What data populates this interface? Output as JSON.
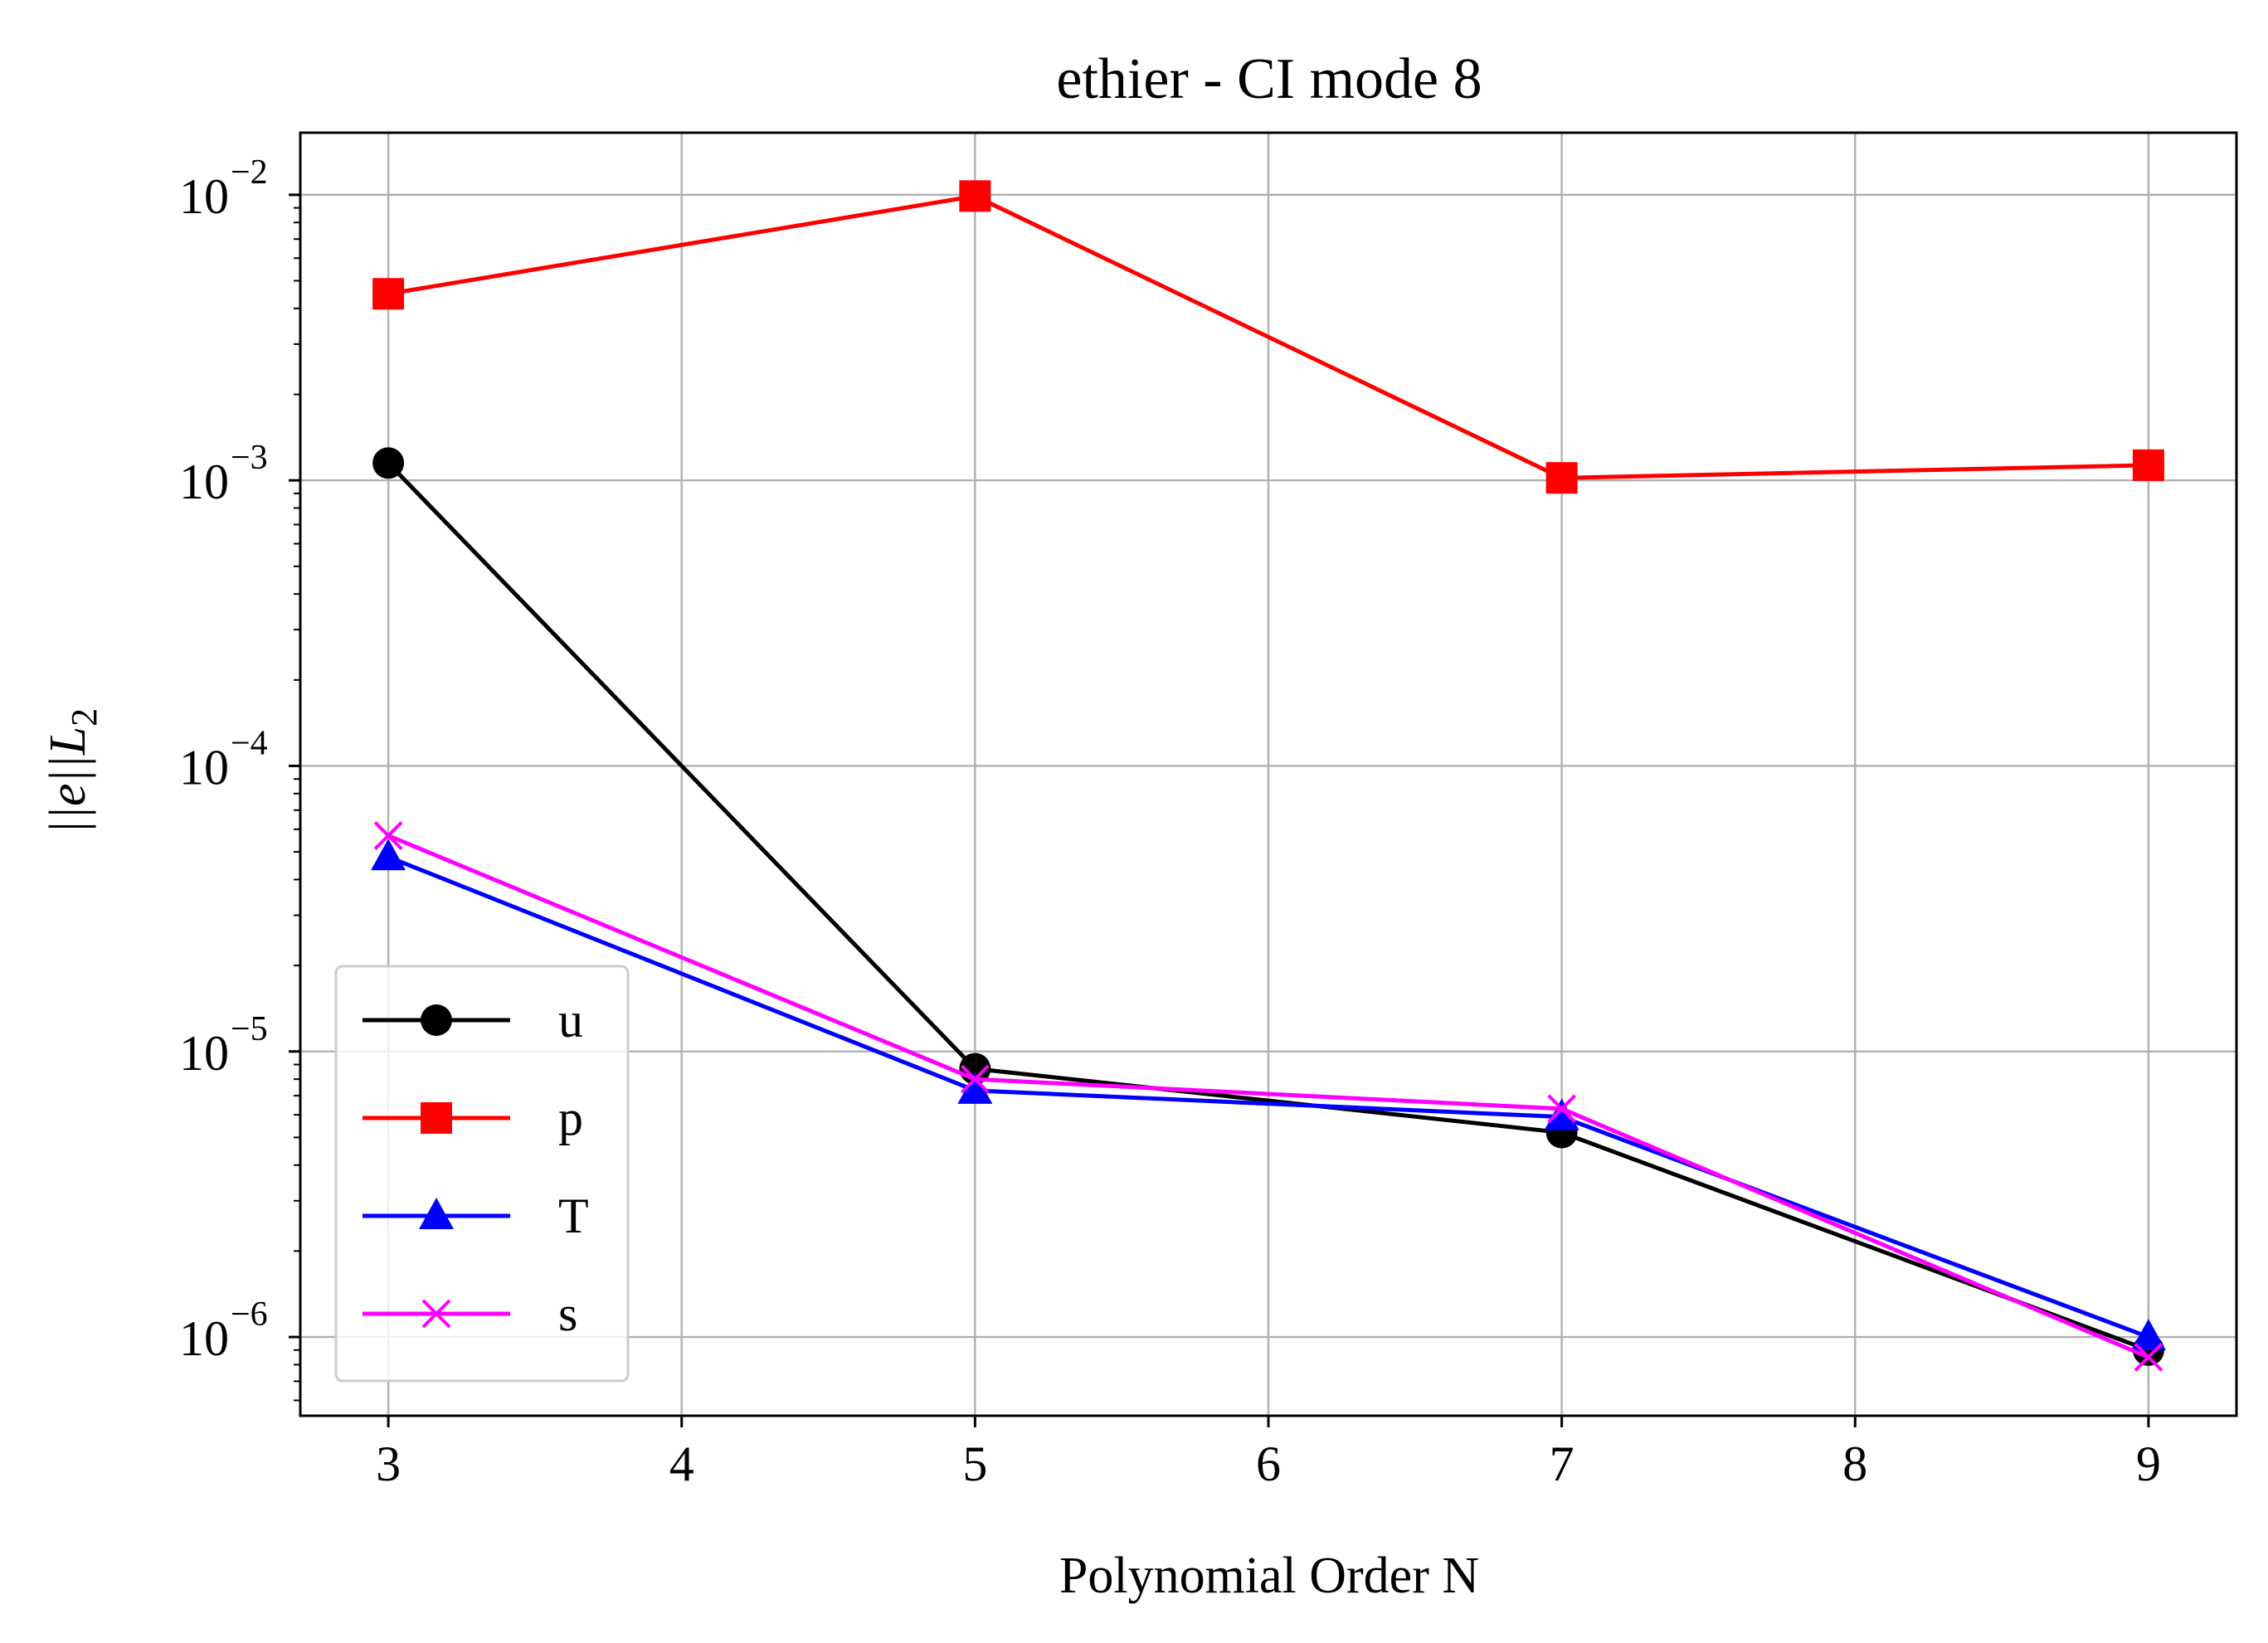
{
  "chart_data": {
    "type": "line",
    "title": "ethier - CI mode 8",
    "xlabel": "Polynomial Order N",
    "ylabel": "||e||L",
    "ylabel_subscript": "2",
    "xlim": [
      2.7,
      9.3
    ],
    "ylim": [
      5.3e-07,
      0.0165
    ],
    "yscale": "log",
    "grid": true,
    "legend_position": "lower-left",
    "x_ticks": [
      3,
      4,
      5,
      6,
      7,
      8,
      9
    ],
    "x_tick_labels": [
      "3",
      "4",
      "5",
      "6",
      "7",
      "8",
      "9"
    ],
    "y_ticks": [
      1e-06,
      1e-05,
      0.0001,
      0.001,
      0.01
    ],
    "y_tick_bases": [
      "10",
      "10",
      "10",
      "10",
      "10"
    ],
    "y_tick_exponents": [
      "−6",
      "−5",
      "−4",
      "−3",
      "−2"
    ],
    "x": [
      3,
      5,
      7,
      9
    ],
    "series": [
      {
        "name": "u",
        "color": "#000000",
        "marker": "circle",
        "values": [
          0.00115,
          8.7e-06,
          5.2e-06,
          9e-07
        ]
      },
      {
        "name": "p",
        "color": "#ff0000",
        "marker": "square",
        "values": [
          0.0045,
          0.0099,
          0.00102,
          0.00113
        ]
      },
      {
        "name": "T",
        "color": "#0000ff",
        "marker": "triangle",
        "values": [
          4.8e-05,
          7.3e-06,
          5.9e-06,
          1e-06
        ]
      },
      {
        "name": "s",
        "color": "#ff00ff",
        "marker": "x",
        "values": [
          5.7e-05,
          8e-06,
          6.3e-06,
          8.5e-07
        ]
      }
    ]
  }
}
